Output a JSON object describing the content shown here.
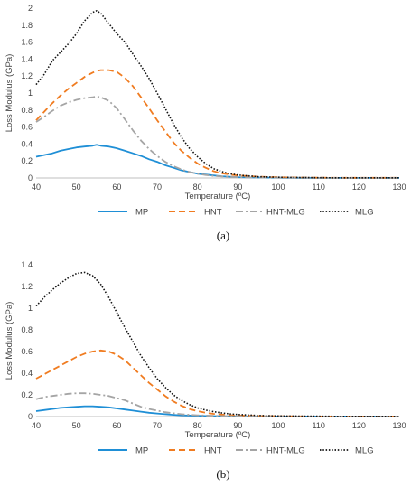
{
  "chart_data": [
    {
      "type": "line",
      "panel_label": "(a)",
      "xlabel": "Temperature (ºC)",
      "ylabel": "Loss Modulus (GPa)",
      "xlim": [
        40,
        130
      ],
      "ylim": [
        0,
        2
      ],
      "xticks": [
        "40",
        "50",
        "60",
        "70",
        "80",
        "90",
        "100",
        "110",
        "120",
        "130"
      ],
      "yticks": [
        "0",
        "0.2",
        "0.4",
        "0.6",
        "0.8",
        "1",
        "1.2",
        "1.4",
        "1.6",
        "1.8",
        "2"
      ],
      "grid": false,
      "legend_position": "bottom",
      "x": [
        40,
        42,
        44,
        46,
        48,
        50,
        52,
        54,
        55,
        56,
        58,
        60,
        62,
        64,
        66,
        68,
        70,
        72,
        74,
        76,
        78,
        80,
        82,
        84,
        86,
        88,
        90,
        95,
        100,
        105,
        110,
        115,
        120,
        125,
        130
      ],
      "series": [
        {
          "name": "MP",
          "color": "#1f8fd6",
          "dash": "solid",
          "values": [
            0.25,
            0.27,
            0.29,
            0.32,
            0.34,
            0.36,
            0.37,
            0.38,
            0.39,
            0.38,
            0.37,
            0.35,
            0.32,
            0.29,
            0.26,
            0.22,
            0.19,
            0.15,
            0.12,
            0.09,
            0.07,
            0.05,
            0.04,
            0.03,
            0.02,
            0.015,
            0.01,
            0.005,
            0.003,
            0.002,
            0.001,
            0.001,
            0.001,
            0.001,
            0.001
          ]
        },
        {
          "name": "HNT",
          "color": "#f07c21",
          "dash": "dashed",
          "values": [
            0.68,
            0.78,
            0.88,
            0.97,
            1.05,
            1.12,
            1.19,
            1.24,
            1.26,
            1.27,
            1.27,
            1.25,
            1.18,
            1.08,
            0.95,
            0.82,
            0.68,
            0.55,
            0.42,
            0.32,
            0.24,
            0.17,
            0.12,
            0.08,
            0.055,
            0.04,
            0.03,
            0.015,
            0.008,
            0.005,
            0.003,
            0.002,
            0.002,
            0.002,
            0.002
          ]
        },
        {
          "name": "HNT-MLG",
          "color": "#a5a5a5",
          "dash": "dashdot",
          "values": [
            0.66,
            0.72,
            0.79,
            0.85,
            0.89,
            0.92,
            0.94,
            0.95,
            0.96,
            0.95,
            0.91,
            0.82,
            0.69,
            0.56,
            0.44,
            0.34,
            0.26,
            0.19,
            0.14,
            0.1,
            0.07,
            0.05,
            0.035,
            0.025,
            0.018,
            0.013,
            0.01,
            0.005,
            0.003,
            0.002,
            0.001,
            0.001,
            0.001,
            0.001,
            0.001
          ]
        },
        {
          "name": "MLG",
          "color": "#111111",
          "dash": "dotted",
          "values": [
            1.1,
            1.22,
            1.38,
            1.48,
            1.58,
            1.7,
            1.85,
            1.95,
            1.97,
            1.94,
            1.82,
            1.7,
            1.6,
            1.46,
            1.32,
            1.17,
            1.0,
            0.82,
            0.64,
            0.48,
            0.35,
            0.25,
            0.17,
            0.11,
            0.075,
            0.05,
            0.035,
            0.015,
            0.008,
            0.005,
            0.003,
            0.002,
            0.002,
            0.002,
            0.002
          ]
        }
      ]
    },
    {
      "type": "line",
      "panel_label": "(b)",
      "xlabel": "Temperature (ºC)",
      "ylabel": "Loss Modulus (GPa)",
      "xlim": [
        40,
        130
      ],
      "ylim": [
        0,
        1.4
      ],
      "xticks": [
        "40",
        "50",
        "60",
        "70",
        "80",
        "90",
        "100",
        "110",
        "120",
        "130"
      ],
      "yticks": [
        "0",
        "0.2",
        "0.4",
        "0.6",
        "0.8",
        "1",
        "1.2",
        "1.4"
      ],
      "grid": false,
      "legend_position": "bottom",
      "x": [
        40,
        42,
        44,
        46,
        48,
        50,
        52,
        54,
        56,
        58,
        60,
        62,
        64,
        66,
        68,
        70,
        72,
        74,
        76,
        78,
        80,
        82,
        84,
        86,
        88,
        90,
        95,
        100,
        105,
        110,
        115,
        120,
        125,
        130
      ],
      "series": [
        {
          "name": "MP",
          "color": "#1f8fd6",
          "dash": "solid",
          "values": [
            0.05,
            0.06,
            0.07,
            0.08,
            0.085,
            0.09,
            0.095,
            0.095,
            0.09,
            0.085,
            0.075,
            0.065,
            0.055,
            0.045,
            0.035,
            0.028,
            0.022,
            0.016,
            0.012,
            0.009,
            0.007,
            0.005,
            0.004,
            0.003,
            0.002,
            0.002,
            0.001,
            0.001,
            0.001,
            0.001,
            0.001,
            0.001,
            0.001,
            0.001
          ]
        },
        {
          "name": "HNT",
          "color": "#f07c21",
          "dash": "dashed",
          "values": [
            0.35,
            0.39,
            0.43,
            0.47,
            0.51,
            0.55,
            0.58,
            0.6,
            0.61,
            0.6,
            0.57,
            0.52,
            0.45,
            0.38,
            0.31,
            0.25,
            0.19,
            0.14,
            0.1,
            0.07,
            0.05,
            0.035,
            0.025,
            0.018,
            0.013,
            0.01,
            0.005,
            0.003,
            0.002,
            0.001,
            0.001,
            0.001,
            0.001,
            0.001
          ]
        },
        {
          "name": "HNT-MLG",
          "color": "#a5a5a5",
          "dash": "dashdot",
          "values": [
            0.16,
            0.18,
            0.19,
            0.2,
            0.21,
            0.215,
            0.215,
            0.21,
            0.2,
            0.19,
            0.17,
            0.15,
            0.12,
            0.09,
            0.07,
            0.055,
            0.04,
            0.03,
            0.022,
            0.016,
            0.012,
            0.009,
            0.007,
            0.005,
            0.004,
            0.003,
            0.002,
            0.001,
            0.001,
            0.001,
            0.001,
            0.001,
            0.001,
            0.001
          ]
        },
        {
          "name": "MLG",
          "color": "#111111",
          "dash": "dotted",
          "values": [
            1.02,
            1.1,
            1.17,
            1.23,
            1.28,
            1.32,
            1.33,
            1.3,
            1.22,
            1.1,
            0.96,
            0.82,
            0.69,
            0.56,
            0.45,
            0.35,
            0.27,
            0.2,
            0.15,
            0.11,
            0.08,
            0.06,
            0.045,
            0.033,
            0.025,
            0.019,
            0.01,
            0.006,
            0.004,
            0.003,
            0.002,
            0.002,
            0.002,
            0.002
          ]
        }
      ]
    }
  ]
}
